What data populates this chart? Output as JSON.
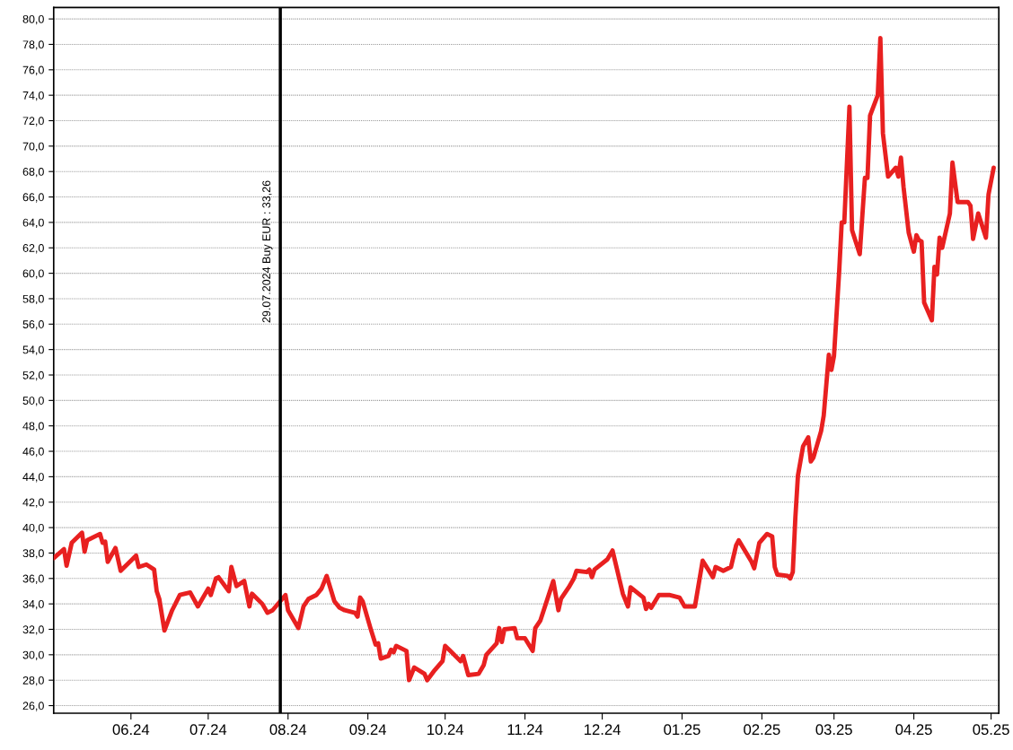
{
  "chart_data": {
    "type": "line",
    "series": [
      {
        "color": "#e82020",
        "x": [
          "2024-05-02",
          "2024-05-06",
          "2024-05-07",
          "2024-05-09",
          "2024-05-13",
          "2024-05-14",
          "2024-05-15",
          "2024-05-20",
          "2024-05-21",
          "2024-05-22",
          "2024-05-23",
          "2024-05-26",
          "2024-05-28",
          "2024-06-01",
          "2024-06-03",
          "2024-06-04",
          "2024-06-07",
          "2024-06-10",
          "2024-06-11",
          "2024-06-12",
          "2024-06-14",
          "2024-06-17",
          "2024-06-20",
          "2024-06-24",
          "2024-06-27",
          "2024-07-01",
          "2024-07-02",
          "2024-07-04",
          "2024-07-05",
          "2024-07-09",
          "2024-07-10",
          "2024-07-12",
          "2024-07-15",
          "2024-07-17",
          "2024-07-18",
          "2024-07-22",
          "2024-07-24",
          "2024-07-26",
          "2024-07-31",
          "2024-08-01",
          "2024-08-05",
          "2024-08-07",
          "2024-08-09",
          "2024-08-12",
          "2024-08-14",
          "2024-08-16",
          "2024-08-19",
          "2024-08-21",
          "2024-08-23",
          "2024-08-27",
          "2024-08-28",
          "2024-08-29",
          "2024-08-30",
          "2024-09-02",
          "2024-09-04",
          "2024-09-05",
          "2024-09-06",
          "2024-09-09",
          "2024-09-10",
          "2024-09-11",
          "2024-09-12",
          "2024-09-16",
          "2024-09-17",
          "2024-09-19",
          "2024-09-23",
          "2024-09-24",
          "2024-09-27",
          "2024-09-30",
          "2024-10-01",
          "2024-10-03",
          "2024-10-07",
          "2024-10-08",
          "2024-10-10",
          "2024-10-14",
          "2024-10-16",
          "2024-10-17",
          "2024-10-21",
          "2024-10-22",
          "2024-10-23",
          "2024-10-24",
          "2024-10-28",
          "2024-10-29",
          "2024-11-01",
          "2024-11-04",
          "2024-11-05",
          "2024-11-07",
          "2024-11-12",
          "2024-11-14",
          "2024-11-15",
          "2024-11-18",
          "2024-11-20",
          "2024-11-21",
          "2024-11-25",
          "2024-11-26",
          "2024-11-27",
          "2024-11-28",
          "2024-12-03",
          "2024-12-05",
          "2024-12-09",
          "2024-12-11",
          "2024-12-12",
          "2024-12-17",
          "2024-12-18",
          "2024-12-19",
          "2024-12-20",
          "2024-12-23",
          "2024-12-27",
          "2024-12-31",
          "2025-01-02",
          "2025-01-06",
          "2025-01-09",
          "2025-01-13",
          "2025-01-14",
          "2025-01-17",
          "2025-01-20",
          "2025-01-22",
          "2025-01-23",
          "2025-01-28",
          "2025-01-29",
          "2025-01-31",
          "2025-02-03",
          "2025-02-05",
          "2025-02-06",
          "2025-02-07",
          "2025-02-11",
          "2025-02-12",
          "2025-02-13",
          "2025-02-14",
          "2025-02-15",
          "2025-02-17",
          "2025-02-19",
          "2025-02-20",
          "2025-02-21",
          "2025-02-24",
          "2025-02-25",
          "2025-02-27",
          "2025-02-28",
          "2025-03-01",
          "2025-03-03",
          "2025-03-04",
          "2025-03-05",
          "2025-03-07",
          "2025-03-08",
          "2025-03-11",
          "2025-03-13",
          "2025-03-14",
          "2025-03-15",
          "2025-03-18",
          "2025-03-19",
          "2025-03-20",
          "2025-03-22",
          "2025-03-25",
          "2025-03-26",
          "2025-03-27",
          "2025-03-28",
          "2025-03-30",
          "2025-04-01",
          "2025-04-02",
          "2025-04-03",
          "2025-04-04",
          "2025-04-05",
          "2025-04-08",
          "2025-04-09",
          "2025-04-10",
          "2025-04-11",
          "2025-04-12",
          "2025-04-15",
          "2025-04-16",
          "2025-04-18",
          "2025-04-22",
          "2025-04-23",
          "2025-04-24",
          "2025-04-26",
          "2025-04-29",
          "2025-04-30",
          "2025-05-02"
        ],
        "values": [
          37.6,
          38.3,
          37.0,
          38.8,
          39.6,
          38.1,
          39.0,
          39.5,
          38.8,
          38.9,
          37.3,
          38.4,
          36.6,
          37.4,
          37.8,
          36.9,
          37.1,
          36.7,
          35.0,
          34.4,
          31.9,
          33.5,
          34.7,
          34.9,
          33.8,
          35.2,
          34.7,
          36.0,
          36.1,
          35.0,
          36.9,
          35.4,
          35.8,
          33.8,
          34.8,
          34.0,
          33.3,
          33.5,
          34.7,
          33.5,
          32.1,
          33.8,
          34.4,
          34.7,
          35.2,
          36.2,
          34.2,
          33.7,
          33.5,
          33.3,
          33.0,
          34.5,
          34.2,
          32.1,
          30.8,
          30.9,
          29.7,
          29.9,
          30.4,
          30.2,
          30.7,
          30.3,
          28.0,
          29.0,
          28.5,
          28.0,
          28.8,
          29.5,
          30.7,
          30.3,
          29.5,
          29.9,
          28.4,
          28.5,
          29.2,
          30.0,
          30.9,
          32.1,
          31.0,
          32.0,
          32.1,
          31.3,
          31.3,
          30.3,
          32.1,
          32.7,
          35.8,
          33.5,
          34.4,
          35.3,
          36.0,
          36.6,
          36.5,
          36.7,
          36.1,
          36.7,
          37.5,
          38.2,
          34.8,
          33.8,
          35.3,
          34.5,
          33.6,
          34.0,
          33.7,
          34.7,
          34.7,
          34.5,
          33.8,
          33.8,
          37.4,
          36.1,
          36.9,
          36.6,
          36.9,
          38.6,
          39.0,
          37.3,
          36.8,
          38.8,
          39.5,
          39.3,
          36.9,
          36.3,
          36.2,
          36.0,
          36.5,
          40.8,
          44.1,
          46.4,
          47.1,
          45.2,
          45.5,
          47.6,
          48.8,
          53.6,
          52.4,
          53.5,
          60.1,
          64.0,
          64.0,
          73.1,
          63.4,
          61.5,
          67.5,
          67.5,
          72.4,
          74.0,
          78.5,
          71.0,
          67.6,
          68.3,
          67.6,
          69.1,
          66.8,
          63.2,
          61.7,
          63.0,
          62.6,
          62.5,
          57.7,
          56.3,
          60.5,
          59.9,
          62.8,
          62.0,
          64.7,
          68.7,
          65.6,
          65.6,
          65.3,
          62.7,
          64.7,
          62.8,
          66.2,
          68.3
        ]
      }
    ],
    "xlim": [
      "2024-05-02",
      "2025-05-04"
    ],
    "xticks": [
      {
        "value": "2024-06-01",
        "label": "06.24"
      },
      {
        "value": "2024-07-01",
        "label": "07.24"
      },
      {
        "value": "2024-08-01",
        "label": "08.24"
      },
      {
        "value": "2024-09-01",
        "label": "09.24"
      },
      {
        "value": "2024-10-01",
        "label": "10.24"
      },
      {
        "value": "2024-11-01",
        "label": "11.24"
      },
      {
        "value": "2024-12-01",
        "label": "12.24"
      },
      {
        "value": "2025-01-01",
        "label": "01.25"
      },
      {
        "value": "2025-02-01",
        "label": "02.25"
      },
      {
        "value": "2025-03-01",
        "label": "03.25"
      },
      {
        "value": "2025-04-01",
        "label": "04.25"
      },
      {
        "value": "2025-05-01",
        "label": "05.25"
      }
    ],
    "ylim": [
      25.4,
      80.9
    ],
    "yticks": [
      {
        "value": 26,
        "label": "26,0"
      },
      {
        "value": 28,
        "label": "28,0"
      },
      {
        "value": 30,
        "label": "30,0"
      },
      {
        "value": 32,
        "label": "32,0"
      },
      {
        "value": 34,
        "label": "34,0"
      },
      {
        "value": 36,
        "label": "36,0"
      },
      {
        "value": 38,
        "label": "38,0"
      },
      {
        "value": 40,
        "label": "40,0"
      },
      {
        "value": 42,
        "label": "42,0"
      },
      {
        "value": 44,
        "label": "44,0"
      },
      {
        "value": 46,
        "label": "46,0"
      },
      {
        "value": 48,
        "label": "48,0"
      },
      {
        "value": 50,
        "label": "50,0"
      },
      {
        "value": 52,
        "label": "52,0"
      },
      {
        "value": 54,
        "label": "54,0"
      },
      {
        "value": 56,
        "label": "56,0"
      },
      {
        "value": 58,
        "label": "58,0"
      },
      {
        "value": 60,
        "label": "60,0"
      },
      {
        "value": 62,
        "label": "62,0"
      },
      {
        "value": 64,
        "label": "64,0"
      },
      {
        "value": 66,
        "label": "66,0"
      },
      {
        "value": 68,
        "label": "68,0"
      },
      {
        "value": 70,
        "label": "70,0"
      },
      {
        "value": 72,
        "label": "72,0"
      },
      {
        "value": 74,
        "label": "74,0"
      },
      {
        "value": 76,
        "label": "76,0"
      },
      {
        "value": 78,
        "label": "78,0"
      },
      {
        "value": 80,
        "label": "80,0"
      }
    ],
    "grid": "y",
    "ref_lines": [
      {
        "axis": "x",
        "value": "2024-07-29",
        "label": "29.07.2024 Buy EUR : 33,26",
        "color": "#000000"
      }
    ]
  }
}
